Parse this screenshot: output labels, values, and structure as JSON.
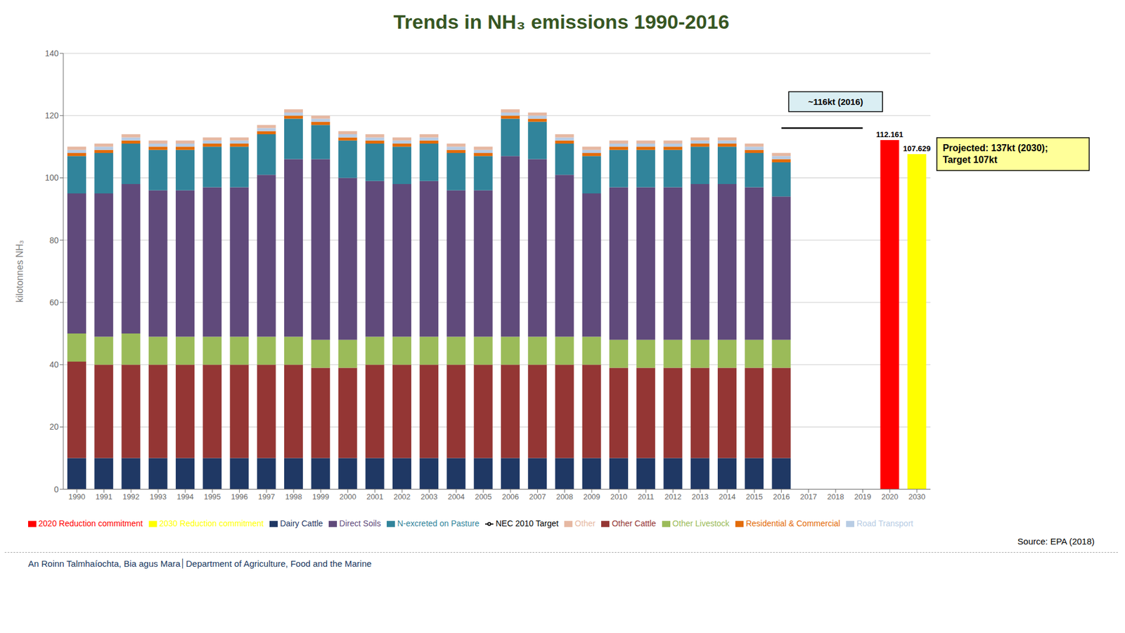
{
  "chart_data": {
    "type": "bar",
    "title": "Trends in NH₃ emissions 1990-2016",
    "y_label": "kilotonnes NH₃",
    "categories": [
      "1990",
      "1991",
      "1992",
      "1993",
      "1994",
      "1995",
      "1996",
      "1997",
      "1998",
      "1999",
      "2000",
      "2001",
      "2002",
      "2003",
      "2004",
      "2005",
      "2006",
      "2007",
      "2008",
      "2009",
      "2010",
      "2011",
      "2012",
      "2013",
      "2014",
      "2015",
      "2016",
      "2017",
      "2018",
      "2019",
      "2020",
      "2030"
    ],
    "stacked": true,
    "grid": true,
    "legend": "bottom",
    "ylim": [
      0,
      140
    ],
    "yticks": [
      0,
      20,
      40,
      60,
      80,
      100,
      120,
      140
    ],
    "series": [
      {
        "name": "Dairy Cattle",
        "color": "#1F3864",
        "values": [
          10,
          10,
          10,
          10,
          10,
          10,
          10,
          10,
          10,
          10,
          10,
          10,
          10,
          10,
          10,
          10,
          10,
          10,
          10,
          10,
          10,
          10,
          10,
          10,
          10,
          10,
          10,
          0,
          0,
          0,
          0,
          0
        ]
      },
      {
        "name": "Other Cattle",
        "color": "#943634",
        "values": [
          31,
          30,
          30,
          30,
          30,
          30,
          30,
          30,
          30,
          29,
          29,
          30,
          30,
          30,
          30,
          30,
          30,
          30,
          30,
          30,
          29,
          29,
          29,
          29,
          29,
          29,
          29,
          0,
          0,
          0,
          0,
          0
        ]
      },
      {
        "name": "Other Livestock",
        "color": "#9BBB59",
        "values": [
          9,
          9,
          10,
          9,
          9,
          9,
          9,
          9,
          9,
          9,
          9,
          9,
          9,
          9,
          9,
          9,
          9,
          9,
          9,
          9,
          9,
          9,
          9,
          9,
          9,
          9,
          9,
          0,
          0,
          0,
          0,
          0
        ]
      },
      {
        "name": "Direct Soils",
        "color": "#604A7B",
        "values": [
          45,
          46,
          48,
          47,
          47,
          48,
          48,
          52,
          57,
          58,
          52,
          50,
          49,
          50,
          47,
          47,
          58,
          57,
          52,
          46,
          49,
          49,
          49,
          50,
          50,
          49,
          46,
          0,
          0,
          0,
          0,
          0
        ]
      },
      {
        "name": "N-excreted on Pasture",
        "color": "#31849B",
        "values": [
          12,
          13,
          13,
          13,
          13,
          13,
          13,
          13,
          13,
          11,
          12,
          12,
          12,
          12,
          12,
          11,
          12,
          12,
          10,
          12,
          12,
          12,
          12,
          12,
          12,
          11,
          11,
          0,
          0,
          0,
          0,
          0
        ]
      },
      {
        "name": "Residential & Commercial",
        "color": "#E36C09",
        "values": [
          1,
          1,
          1,
          1,
          1,
          1,
          1,
          1,
          1,
          1,
          1,
          1,
          1,
          1,
          1,
          1,
          1,
          1,
          1,
          1,
          1,
          1,
          1,
          1,
          1,
          1,
          1,
          0,
          0,
          0,
          0,
          0
        ]
      },
      {
        "name": "Road Transport",
        "color": "#B8CCE4",
        "values": [
          1,
          1,
          1,
          1,
          1,
          1,
          1,
          1,
          1,
          1,
          1,
          1,
          1,
          1,
          1,
          1,
          1,
          1,
          1,
          1,
          1,
          1,
          1,
          1,
          1,
          1,
          1,
          0,
          0,
          0,
          0,
          0
        ]
      },
      {
        "name": "Other",
        "color": "#E6B8A2",
        "values": [
          1,
          1,
          1,
          1,
          1,
          1,
          1,
          1,
          1,
          1,
          1,
          1,
          1,
          1,
          1,
          1,
          1,
          1,
          1,
          1,
          1,
          1,
          1,
          1,
          1,
          1,
          1,
          0,
          0,
          0,
          0,
          0
        ]
      },
      {
        "name": "2020 Reduction commitment",
        "color": "#FF0000",
        "data_labels": true,
        "values": [
          null,
          null,
          null,
          null,
          null,
          null,
          null,
          null,
          null,
          null,
          null,
          null,
          null,
          null,
          null,
          null,
          null,
          null,
          null,
          null,
          null,
          null,
          null,
          null,
          null,
          null,
          null,
          null,
          null,
          null,
          112.161,
          null
        ]
      },
      {
        "name": "2030 Reduction commitment",
        "color": "#FFFF00",
        "data_labels": true,
        "values": [
          null,
          null,
          null,
          null,
          null,
          null,
          null,
          null,
          null,
          null,
          null,
          null,
          null,
          null,
          null,
          null,
          null,
          null,
          null,
          null,
          null,
          null,
          null,
          null,
          null,
          null,
          null,
          null,
          null,
          null,
          null,
          107.629
        ]
      },
      {
        "name": "NEC 2010 Target",
        "type": "line",
        "color": "#000000",
        "values": [
          null,
          null,
          null,
          null,
          null,
          null,
          null,
          null,
          null,
          null,
          null,
          null,
          null,
          null,
          null,
          null,
          null,
          null,
          null,
          null,
          null,
          null,
          null,
          null,
          null,
          null,
          116,
          116,
          116,
          116,
          null,
          null
        ]
      }
    ],
    "annotations": [
      "~116kt (2016)",
      "Projected: 137kt (2030);\nTarget 107kt",
      "Source: EPA (2018)",
      "An Roinn Talmhaíochta, Bia agus Mara│Department of Agriculture, Food and the Marine"
    ]
  }
}
